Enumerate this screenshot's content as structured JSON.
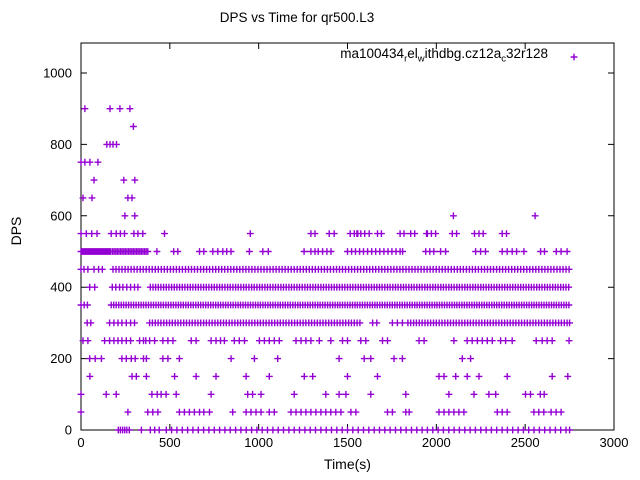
{
  "figure": {
    "background": "#ffffff",
    "axis_color": "#000000"
  },
  "chart_data": {
    "type": "scatter",
    "title": "DPS vs Time for qr500.L3",
    "xlabel": "Time(s)",
    "ylabel": "DPS",
    "xlim": [
      0,
      3000
    ],
    "ylim": [
      0,
      1084
    ],
    "xticks": [
      0,
      500,
      1000,
      1500,
      2000,
      2500,
      3000
    ],
    "yticks": [
      0,
      200,
      400,
      600,
      800,
      1000
    ],
    "grid": false,
    "legend_position": "top-right-inside",
    "marker": "plus",
    "marker_color": "#9400d3",
    "series_name": "ma100434_rel_withdbg.cz12a_c32r128",
    "legend_segments": [
      {
        "text": "ma100434"
      },
      {
        "text": "r",
        "sub": true
      },
      {
        "text": "el"
      },
      {
        "text": "w",
        "sub": true
      },
      {
        "text": "ithdbg.cz12a"
      },
      {
        "text": "c",
        "sub": true
      },
      {
        "text": "32r128"
      }
    ],
    "points_by_dps": {
      "0": [
        210,
        222,
        234,
        246,
        258,
        272,
        340,
        390,
        415,
        440,
        480,
        510,
        540,
        570,
        600,
        630,
        660,
        690,
        720,
        750,
        780,
        810,
        840,
        870,
        900,
        930,
        960,
        990,
        1020,
        1050,
        1080,
        1110,
        1140,
        1170,
        1200,
        1230,
        1260,
        1290,
        1320,
        1350,
        1380,
        1410,
        1440,
        1470,
        1500,
        1530,
        1560,
        1590,
        1620,
        1650,
        1680,
        1710,
        1740,
        1770,
        1800,
        1830,
        1860,
        1890,
        1920,
        1950,
        1980,
        2010,
        2040,
        2070,
        2100,
        2130,
        2160,
        2190,
        2220,
        2250,
        2280,
        2310,
        2340,
        2370,
        2400,
        2430,
        2460,
        2490,
        2520,
        2550,
        2580,
        2610,
        2640,
        2670,
        2700,
        2730,
        2750
      ],
      "50": [
        0,
        264,
        376,
        404,
        433,
        554,
        582,
        610,
        638,
        667,
        691,
        723,
        854,
        929,
        957,
        985,
        1013,
        1060,
        1088,
        1182,
        1210,
        1238,
        1266,
        1294,
        1322,
        1350,
        1378,
        1406,
        1434,
        1463,
        1519,
        1547,
        1725,
        1753,
        1828,
        1847,
        2015,
        2043,
        2071,
        2099,
        2127,
        2155,
        2343,
        2371,
        2399,
        2549,
        2577,
        2605,
        2646,
        2674,
        2702
      ],
      "100": [
        0,
        142,
        198,
        399,
        429,
        451,
        479,
        536,
        732,
        938,
        966,
        1013,
        1200,
        1378,
        1453,
        1491,
        1631,
        1828,
        2071,
        2212,
        2296,
        2334,
        2502,
        2530,
        2585,
        2607
      ],
      "150": [
        50,
        287,
        311,
        368,
        527,
        648,
        760,
        929,
        1060,
        1257,
        1304,
        1500,
        1669,
        2015,
        2043,
        2109,
        2174,
        2240,
        2399,
        2652,
        2740
      ],
      "200": [
        49,
        80,
        115,
        230,
        255,
        283,
        305,
        352,
        368,
        461,
        489,
        554,
        845,
        976,
        1107,
        1453,
        1594,
        1631,
        1762,
        1809,
        2146,
        2193
      ],
      "250": [
        11,
        39,
        133,
        161,
        185,
        208,
        230,
        255,
        279,
        330,
        352,
        365,
        386,
        414,
        461,
        489,
        517,
        620,
        648,
        732,
        760,
        785,
        807,
        863,
        891,
        920,
        1004,
        1032,
        1060,
        1088,
        1116,
        1210,
        1238,
        1266,
        1294,
        1341,
        1406,
        1472,
        1500,
        1575,
        1603,
        1697,
        1725,
        1903,
        1931,
        2099,
        2174,
        2202,
        2231,
        2259,
        2287,
        2315,
        2362,
        2390,
        2427,
        2562,
        2596,
        2624,
        2652,
        2747
      ],
      "300": [
        35,
        55,
        161,
        185,
        208,
        230,
        255,
        279,
        301,
        386,
        402,
        418,
        434,
        450,
        466,
        482,
        498,
        514,
        530,
        546,
        562,
        578,
        594,
        610,
        626,
        642,
        658,
        674,
        690,
        706,
        722,
        738,
        754,
        770,
        786,
        802,
        818,
        834,
        850,
        866,
        882,
        898,
        914,
        930,
        946,
        962,
        978,
        994,
        1010,
        1026,
        1042,
        1058,
        1074,
        1090,
        1106,
        1122,
        1138,
        1154,
        1170,
        1186,
        1202,
        1218,
        1234,
        1250,
        1266,
        1282,
        1298,
        1314,
        1330,
        1346,
        1362,
        1378,
        1394,
        1410,
        1426,
        1442,
        1458,
        1474,
        1490,
        1506,
        1522,
        1538,
        1554,
        1570,
        1641,
        1665,
        1753,
        1781,
        1809,
        1840,
        1856,
        1872,
        1888,
        1904,
        1920,
        1936,
        1952,
        1968,
        1984,
        2000,
        2016,
        2032,
        2048,
        2064,
        2080,
        2096,
        2112,
        2128,
        2144,
        2160,
        2176,
        2192,
        2208,
        2224,
        2240,
        2256,
        2272,
        2288,
        2304,
        2320,
        2336,
        2352,
        2368,
        2384,
        2400,
        2416,
        2432,
        2448,
        2464,
        2480,
        2496,
        2512,
        2528,
        2544,
        2560,
        2576,
        2592,
        2608,
        2624,
        2640,
        2656,
        2672,
        2688,
        2704,
        2720,
        2736,
        2750
      ],
      "350": [
        0,
        18,
        36,
        170,
        184,
        198,
        212,
        226,
        240,
        254,
        268,
        282,
        296,
        310,
        324,
        338,
        352,
        366,
        380,
        394,
        408,
        422,
        436,
        450,
        464,
        478,
        492,
        506,
        520,
        534,
        548,
        562,
        576,
        590,
        604,
        618,
        632,
        646,
        660,
        674,
        688,
        702,
        716,
        730,
        744,
        758,
        772,
        786,
        800,
        814,
        828,
        842,
        856,
        870,
        884,
        898,
        912,
        926,
        940,
        954,
        968,
        982,
        996,
        1010,
        1024,
        1038,
        1052,
        1066,
        1080,
        1094,
        1108,
        1122,
        1136,
        1150,
        1164,
        1178,
        1192,
        1206,
        1220,
        1234,
        1248,
        1262,
        1276,
        1290,
        1304,
        1318,
        1332,
        1346,
        1360,
        1374,
        1388,
        1402,
        1416,
        1430,
        1444,
        1458,
        1472,
        1486,
        1500,
        1514,
        1528,
        1542,
        1556,
        1570,
        1584,
        1598,
        1612,
        1626,
        1640,
        1654,
        1668,
        1682,
        1696,
        1710,
        1724,
        1738,
        1752,
        1766,
        1780,
        1794,
        1808,
        1822,
        1836,
        1850,
        1864,
        1878,
        1892,
        1906,
        1920,
        1934,
        1948,
        1962,
        1976,
        1990,
        2004,
        2018,
        2032,
        2046,
        2060,
        2074,
        2088,
        2102,
        2116,
        2130,
        2144,
        2158,
        2172,
        2186,
        2200,
        2214,
        2228,
        2242,
        2256,
        2270,
        2284,
        2298,
        2312,
        2326,
        2340,
        2354,
        2368,
        2382,
        2396,
        2410,
        2424,
        2438,
        2452,
        2466,
        2480,
        2494,
        2508,
        2522,
        2536,
        2550,
        2564,
        2578,
        2592,
        2606,
        2620,
        2634,
        2648,
        2662,
        2676,
        2690,
        2704,
        2718,
        2732,
        2746
      ],
      "400": [
        49,
        77,
        176,
        196,
        217,
        236,
        258,
        279,
        301,
        320,
        390,
        405,
        420,
        435,
        450,
        465,
        480,
        495,
        510,
        525,
        540,
        555,
        570,
        585,
        600,
        615,
        630,
        645,
        660,
        675,
        690,
        705,
        720,
        735,
        750,
        765,
        780,
        795,
        810,
        825,
        840,
        855,
        870,
        885,
        900,
        915,
        930,
        945,
        960,
        975,
        990,
        1005,
        1020,
        1035,
        1050,
        1065,
        1080,
        1095,
        1110,
        1125,
        1140,
        1155,
        1170,
        1185,
        1200,
        1215,
        1230,
        1245,
        1260,
        1275,
        1290,
        1305,
        1320,
        1335,
        1350,
        1365,
        1380,
        1395,
        1410,
        1425,
        1440,
        1455,
        1470,
        1485,
        1500,
        1515,
        1530,
        1545,
        1560,
        1575,
        1590,
        1605,
        1620,
        1635,
        1650,
        1665,
        1680,
        1695,
        1710,
        1725,
        1740,
        1755,
        1770,
        1785,
        1800,
        1815,
        1830,
        1845,
        1860,
        1875,
        1890,
        1905,
        1920,
        1935,
        1950,
        1965,
        1980,
        1995,
        2010,
        2025,
        2040,
        2055,
        2070,
        2085,
        2100,
        2115,
        2130,
        2145,
        2160,
        2175,
        2190,
        2205,
        2220,
        2235,
        2250,
        2265,
        2280,
        2295,
        2310,
        2325,
        2340,
        2355,
        2370,
        2385,
        2400,
        2415,
        2430,
        2445,
        2460,
        2475,
        2490,
        2505,
        2520,
        2535,
        2550,
        2565,
        2580,
        2595,
        2610,
        2625,
        2640,
        2655,
        2670,
        2685,
        2700,
        2715,
        2730,
        2745
      ],
      "450": [
        0,
        17,
        39,
        73,
        99,
        120,
        180,
        197,
        214,
        231,
        248,
        265,
        282,
        299,
        316,
        333,
        350,
        367,
        384,
        401,
        418,
        435,
        452,
        469,
        486,
        503,
        520,
        537,
        554,
        571,
        588,
        605,
        622,
        639,
        656,
        673,
        690,
        707,
        724,
        741,
        758,
        775,
        792,
        809,
        826,
        843,
        860,
        877,
        894,
        911,
        928,
        945,
        962,
        979,
        996,
        1013,
        1030,
        1047,
        1064,
        1081,
        1098,
        1115,
        1132,
        1149,
        1166,
        1183,
        1200,
        1217,
        1234,
        1251,
        1268,
        1285,
        1302,
        1319,
        1336,
        1353,
        1370,
        1387,
        1404,
        1421,
        1438,
        1455,
        1472,
        1489,
        1506,
        1523,
        1540,
        1557,
        1574,
        1591,
        1608,
        1625,
        1642,
        1659,
        1676,
        1693,
        1710,
        1727,
        1744,
        1761,
        1778,
        1795,
        1812,
        1829,
        1846,
        1863,
        1880,
        1897,
        1914,
        1931,
        1948,
        1965,
        1982,
        1999,
        2016,
        2033,
        2050,
        2067,
        2084,
        2101,
        2118,
        2135,
        2152,
        2169,
        2186,
        2203,
        2220,
        2237,
        2254,
        2271,
        2288,
        2305,
        2322,
        2339,
        2356,
        2373,
        2390,
        2407,
        2424,
        2441,
        2458,
        2475,
        2492,
        2509,
        2526,
        2543,
        2560,
        2577,
        2594,
        2611,
        2628,
        2645,
        2662,
        2679,
        2696,
        2713,
        2730,
        2747
      ],
      "500": [
        0,
        6,
        12,
        18,
        24,
        30,
        36,
        42,
        48,
        54,
        60,
        66,
        72,
        78,
        84,
        90,
        96,
        102,
        108,
        114,
        120,
        126,
        132,
        138,
        144,
        150,
        156,
        162,
        168,
        178,
        187,
        196,
        205,
        214,
        223,
        232,
        241,
        250,
        259,
        268,
        277,
        286,
        295,
        304,
        313,
        322,
        331,
        340,
        349,
        358,
        367,
        376,
        427,
        522,
        545,
        667,
        691,
        742,
        770,
        798,
        820,
        844,
        948,
        1023,
        1054,
        1256,
        1294,
        1317,
        1335,
        1360,
        1384,
        1407,
        1500,
        1523,
        1545,
        1568,
        1590,
        1613,
        1636,
        1659,
        1682,
        1705,
        1728,
        1750,
        1773,
        1796,
        1810,
        1940,
        1963,
        1986,
        2024,
        2052,
        2221,
        2249,
        2277,
        2371,
        2399,
        2427,
        2452,
        2493,
        2587,
        2609,
        2675,
        2702,
        2736
      ],
      "550": [
        0,
        30,
        60,
        90,
        170,
        198,
        222,
        245,
        298,
        320,
        348,
        470,
        953,
        1294,
        1317,
        1397,
        1425,
        1515,
        1538,
        1553,
        1558,
        1575,
        1597,
        1622,
        1669,
        1691,
        1796,
        1818,
        1856,
        1878,
        1945,
        1950,
        1972,
        1996,
        2090,
        2114,
        2215,
        2240,
        2264,
        2371,
        2395
      ],
      "600": [
        247,
        303,
        2096,
        2556
      ],
      "650": [
        11,
        62,
        264,
        287
      ],
      "700": [
        73,
        241,
        303
      ],
      "750": [
        0,
        22,
        50,
        95
      ],
      "800": [
        145,
        163,
        180,
        200
      ],
      "850": [
        295
      ],
      "900": [
        22,
        163,
        219,
        275
      ]
    }
  }
}
